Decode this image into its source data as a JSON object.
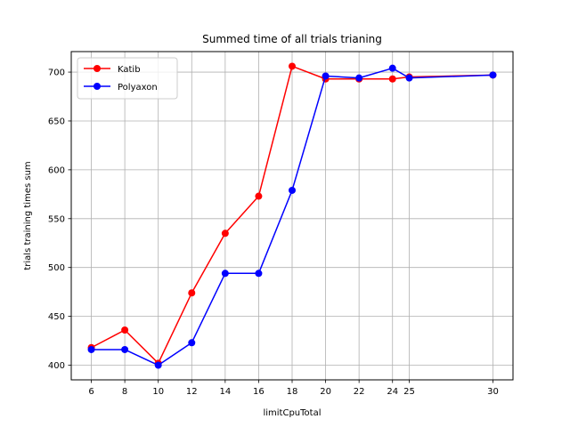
{
  "chart_data": {
    "type": "line",
    "title": "Summed time of all trials trianing",
    "xlabel": "limitCpuTotal",
    "ylabel": "trials training times sum",
    "x": [
      6,
      8,
      10,
      12,
      14,
      16,
      18,
      20,
      22,
      24,
      25,
      30
    ],
    "xticks": [
      6,
      8,
      10,
      12,
      14,
      16,
      18,
      20,
      22,
      24,
      25,
      30
    ],
    "yticks": [
      400,
      450,
      500,
      550,
      600,
      650,
      700
    ],
    "xlim": [
      4.8,
      31.2
    ],
    "ylim": [
      385,
      721
    ],
    "grid": true,
    "legend_position": "upper left",
    "series": [
      {
        "name": "Katib",
        "color": "#ff0000",
        "values": [
          418,
          436,
          402,
          474,
          535,
          573,
          706,
          693,
          693,
          693,
          695,
          697
        ]
      },
      {
        "name": "Polyaxon",
        "color": "#0000ff",
        "values": [
          416,
          416,
          400,
          423,
          494,
          494,
          579,
          696,
          694,
          704,
          694,
          697
        ]
      }
    ]
  }
}
